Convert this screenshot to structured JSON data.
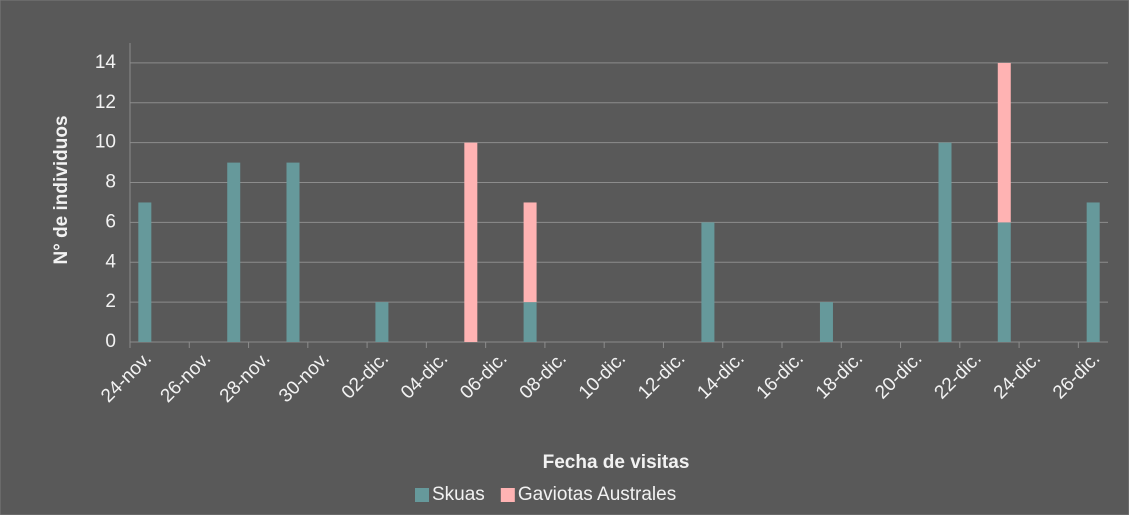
{
  "chart_data": {
    "type": "bar",
    "stacked": true,
    "x_label": "Fecha de visitas",
    "y_label": "N° de individuos",
    "categories": [
      "24-nov.",
      null,
      "26-nov.",
      null,
      "28-nov.",
      null,
      "30-nov.",
      null,
      "02-dic.",
      null,
      "04-dic.",
      null,
      "06-dic.",
      null,
      "08-dic.",
      null,
      "10-dic.",
      null,
      "12-dic.",
      null,
      "14-dic.",
      null,
      "16-dic.",
      null,
      "18-dic.",
      null,
      "20-dic.",
      null,
      "22-dic.",
      null,
      "24-dic.",
      null,
      "26-dic."
    ],
    "series": [
      {
        "name": "Skuas",
        "color": "#66999b",
        "values": [
          7,
          null,
          null,
          9,
          null,
          9,
          null,
          null,
          2,
          null,
          null,
          0,
          null,
          2,
          null,
          null,
          null,
          null,
          null,
          6,
          null,
          null,
          null,
          2,
          null,
          null,
          null,
          10,
          null,
          6,
          null,
          null,
          7
        ]
      },
      {
        "name": "Gaviotas Australes",
        "color": "#ffb3b3",
        "values": [
          0,
          null,
          null,
          0,
          null,
          0,
          null,
          null,
          0,
          null,
          null,
          10,
          null,
          5,
          null,
          null,
          null,
          null,
          null,
          0,
          null,
          null,
          null,
          0,
          null,
          null,
          null,
          0,
          null,
          8,
          null,
          null,
          0
        ]
      }
    ],
    "ylim": [
      0,
      15
    ],
    "yticks": [
      0,
      2,
      4,
      6,
      8,
      10,
      12,
      14
    ],
    "grid": true,
    "legend": "bottom"
  }
}
